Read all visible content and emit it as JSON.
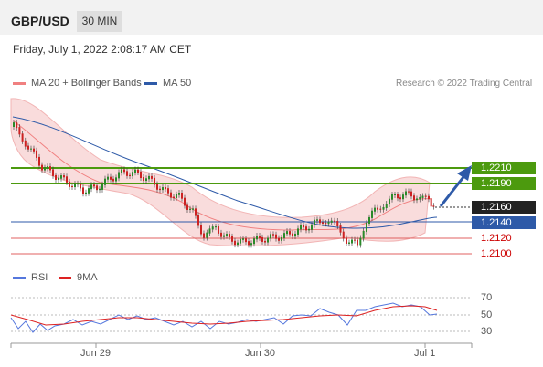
{
  "header": {
    "pair": "GBP/USD",
    "timeframe": "30 MIN"
  },
  "timestamp": "Friday, July 1, 2022 2:08:17 AM CET",
  "legend": {
    "ma20": "MA 20 + Bollinger Bands",
    "ma50": "MA 50",
    "copyright": "Research © 2022 Trading Central"
  },
  "colors": {
    "support_res": "#4c9a0e",
    "ma20": "#f08080",
    "ma50": "#2e5aa8",
    "current": "#222222",
    "red_level": "#cc0000"
  },
  "levels": {
    "r2": "1.2210",
    "r1": "1.2190",
    "current": "1.2160",
    "s1": "1.2140",
    "s2": "1.2120",
    "s3": "1.2100"
  },
  "rsi": {
    "legend_rsi": "RSI",
    "legend_9ma": "9MA",
    "ticks": [
      "70",
      "50",
      "30"
    ]
  },
  "x_axis": {
    "labels": [
      "Jun 29",
      "Jun 30",
      "Jul 1"
    ]
  },
  "chart_data": {
    "type": "candlestick",
    "title": "GBP/USD",
    "timeframe": "30 MIN",
    "y_levels": [
      1.221,
      1.219,
      1.216,
      1.214,
      1.212,
      1.21
    ],
    "series": [
      {
        "name": "MA 20 + Bollinger Bands"
      },
      {
        "name": "MA 50"
      },
      {
        "name": "RSI"
      },
      {
        "name": "9MA"
      }
    ],
    "x_labels": [
      "Jun 29",
      "Jun 30",
      "Jul 1"
    ],
    "rsi_ticks": [
      70,
      50,
      30
    ]
  }
}
